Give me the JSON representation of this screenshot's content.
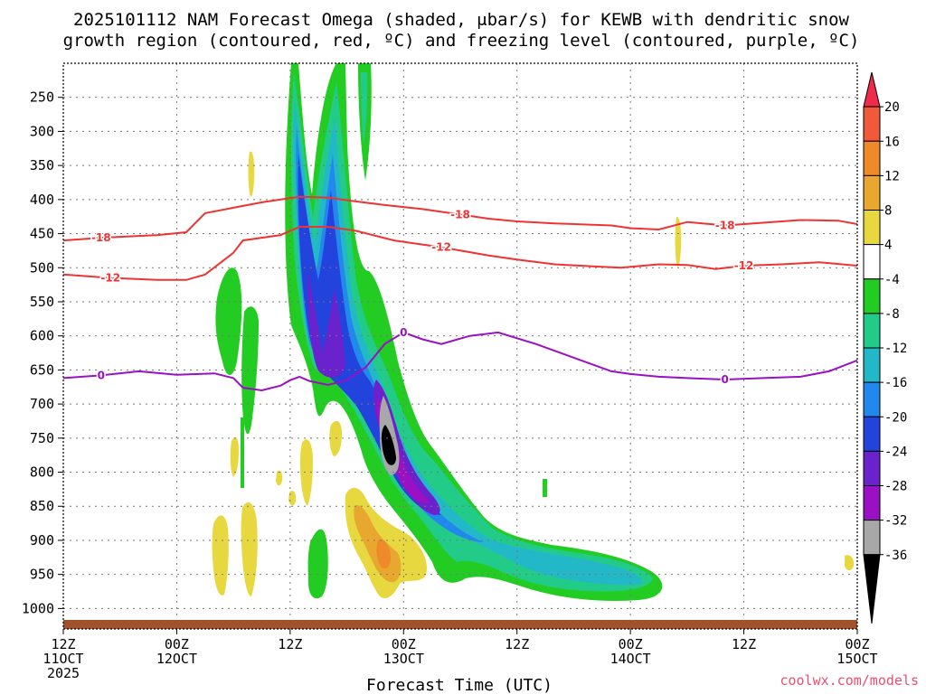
{
  "chart_data": {
    "type": "heatmap",
    "title_line1": "2025101112 NAM Forecast Omega (shaded, μbar/s) for KEWB with dendritic snow",
    "title_line2": "growth region (contoured, red, ºC) and freezing level (contoured, purple, ºC)",
    "xlabel": "Forecast Time (UTC)",
    "ylabel": "",
    "credit": "coolwx.com/models",
    "y_axis": {
      "ticks": [
        250,
        300,
        350,
        400,
        450,
        500,
        550,
        600,
        650,
        700,
        750,
        800,
        850,
        900,
        950,
        1000
      ],
      "ylim": [
        1030,
        200
      ]
    },
    "x_axis": {
      "ticks": [
        {
          "hours": 0,
          "line1": "12Z",
          "line2": "11OCT",
          "line3": "2025"
        },
        {
          "hours": 12,
          "line1": "00Z",
          "line2": "12OCT",
          "line3": ""
        },
        {
          "hours": 24,
          "line1": "12Z",
          "line2": "",
          "line3": ""
        },
        {
          "hours": 36,
          "line1": "00Z",
          "line2": "13OCT",
          "line3": ""
        },
        {
          "hours": 48,
          "line1": "12Z",
          "line2": "",
          "line3": ""
        },
        {
          "hours": 60,
          "line1": "00Z",
          "line2": "14OCT",
          "line3": ""
        },
        {
          "hours": 72,
          "line1": "12Z",
          "line2": "",
          "line3": ""
        },
        {
          "hours": 84,
          "line1": "00Z",
          "line2": "15OCT",
          "line3": ""
        }
      ],
      "xlim": [
        0,
        84
      ]
    },
    "grid": true,
    "colorbar": {
      "levels": [
        "20",
        "16",
        "12",
        "8",
        "4",
        "-4",
        "-8",
        "-12",
        "-16",
        "-20",
        "-24",
        "-28",
        "-32",
        "-36"
      ],
      "colors": [
        "#ef2a4a",
        "#f05a3a",
        "#ee8a2a",
        "#e8a830",
        "#e8d840",
        "#ffffff",
        "#22cc22",
        "#22cc88",
        "#22b8c8",
        "#2288ee",
        "#2244dd",
        "#6a22cc",
        "#9a10c4",
        "#a8a8a8",
        "#000000"
      ]
    },
    "contours": {
      "red_dgz": [
        {
          "label": "-18",
          "points": [
            [
              0,
              460
            ],
            [
              4,
              456
            ],
            [
              10,
              452
            ],
            [
              13,
              448
            ],
            [
              15,
              420
            ],
            [
              18,
              412
            ],
            [
              21,
              404
            ],
            [
              23,
              400
            ],
            [
              25,
              396
            ],
            [
              28,
              397
            ],
            [
              30,
              401
            ],
            [
              34,
              408
            ],
            [
              38,
              414
            ],
            [
              42,
              422
            ],
            [
              45,
              428
            ],
            [
              48,
              432
            ],
            [
              52,
              435
            ],
            [
              56,
              437
            ],
            [
              58,
              438
            ],
            [
              60,
              442
            ],
            [
              63,
              444
            ],
            [
              66,
              433
            ],
            [
              70,
              438
            ],
            [
              74,
              434
            ],
            [
              78,
              430
            ],
            [
              82,
              431
            ],
            [
              84,
              436
            ]
          ]
        },
        {
          "label": "-12",
          "points": [
            [
              0,
              510
            ],
            [
              5,
              515
            ],
            [
              10,
              518
            ],
            [
              13,
              518
            ],
            [
              15,
              510
            ],
            [
              18,
              478
            ],
            [
              19,
              460
            ],
            [
              23,
              452
            ],
            [
              25,
              440
            ],
            [
              28,
              440
            ],
            [
              31,
              446
            ],
            [
              35,
              460
            ],
            [
              40,
              470
            ],
            [
              45,
              482
            ],
            [
              48,
              488
            ],
            [
              52,
              495
            ],
            [
              56,
              498
            ],
            [
              59,
              500
            ],
            [
              63,
              495
            ],
            [
              66,
              496
            ],
            [
              69,
              502
            ],
            [
              72,
              497
            ],
            [
              76,
              495
            ],
            [
              80,
              492
            ],
            [
              84,
              497
            ]
          ]
        }
      ],
      "purple_frz": [
        {
          "label": "0",
          "points": [
            [
              0,
              662
            ],
            [
              4,
              658
            ],
            [
              8,
              652
            ],
            [
              12,
              657
            ],
            [
              16,
              655
            ],
            [
              18,
              662
            ],
            [
              19,
              676
            ],
            [
              21,
              680
            ],
            [
              23,
              673
            ],
            [
              24,
              665
            ],
            [
              25,
              660
            ],
            [
              26,
              666
            ],
            [
              28,
              672
            ],
            [
              30,
              665
            ],
            [
              32,
              646
            ],
            [
              34,
              612
            ],
            [
              36,
              595
            ],
            [
              38,
              605
            ],
            [
              40,
              612
            ],
            [
              43,
              600
            ],
            [
              46,
              595
            ],
            [
              50,
              612
            ],
            [
              54,
              632
            ],
            [
              58,
              652
            ],
            [
              60,
              656
            ],
            [
              63,
              660
            ],
            [
              66,
              662
            ],
            [
              70,
              664
            ],
            [
              74,
              662
            ],
            [
              78,
              660
            ],
            [
              81,
              652
            ],
            [
              84,
              636
            ]
          ]
        }
      ]
    }
  }
}
